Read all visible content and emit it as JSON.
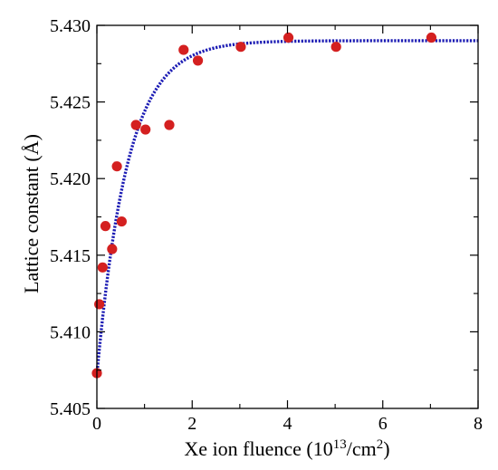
{
  "chart_data": {
    "type": "scatter",
    "xlabel": {
      "prefix": "Xe ion fluence (10",
      "sup1": "13",
      "mid": "/cm",
      "sup2": "2",
      "suffix": ")"
    },
    "ylabel": "Lattice constant (Å)",
    "xlim": [
      0,
      8
    ],
    "ylim": [
      5.405,
      5.43
    ],
    "xticks": [
      0,
      2,
      4,
      6,
      8
    ],
    "yticks": [
      5.405,
      5.41,
      5.415,
      5.42,
      5.425,
      5.43
    ],
    "xtick_labels": [
      "0",
      "2",
      "4",
      "6",
      "8"
    ],
    "ytick_labels": [
      "5.405",
      "5.410",
      "5.415",
      "5.420",
      "5.425",
      "5.430"
    ],
    "grid": false,
    "colors": {
      "points": "#d42020",
      "fit": "#1c1cb4",
      "axes": "#000000"
    },
    "series": [
      {
        "kind": "points",
        "x": [
          0.0,
          0.05,
          0.12,
          0.18,
          0.32,
          0.42,
          0.52,
          0.82,
          1.02,
          1.52,
          1.82,
          2.12,
          3.02,
          4.02,
          5.02,
          7.02
        ],
        "y": [
          5.4073,
          5.4118,
          5.4142,
          5.4169,
          5.4154,
          5.4208,
          5.4172,
          5.4235,
          5.4232,
          5.4235,
          5.4284,
          5.4277,
          5.4286,
          5.4292,
          5.4286,
          5.4292
        ]
      },
      {
        "kind": "fit",
        "model": "exponential saturation",
        "y0": 5.4072,
        "y_inf": 5.429,
        "rate": 1.55,
        "x_range": [
          0,
          8
        ]
      }
    ]
  }
}
